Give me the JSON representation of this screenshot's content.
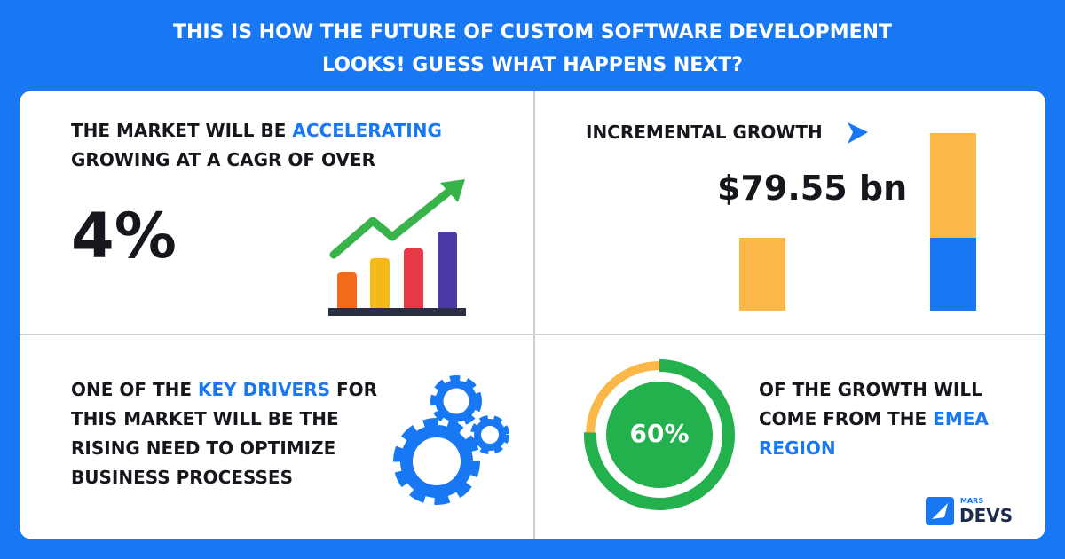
{
  "header": {
    "title_lines": [
      "THIS IS HOW THE FUTURE OF CUSTOM SOFTWARE DEVELOPMENT",
      "LOOKS! GUESS WHAT HAPPENS NEXT?"
    ]
  },
  "panels": {
    "market": {
      "before": "THE MARKET WILL BE",
      "highlight": "ACCELERATING",
      "second_line": "GROWING AT A CAGR OF OVER",
      "figure": "4%"
    },
    "growth": {
      "label": "INCREMENTAL GROWTH",
      "figure": "$79.55 bn"
    },
    "drivers": {
      "before": "ONE OF THE",
      "highlight": "KEY DRIVERS",
      "after": "FOR",
      "lines": [
        "THIS MARKET WILL BE THE",
        "RISING NEED TO OPTIMIZE",
        "BUSINESS PROCESSES"
      ]
    },
    "region": {
      "figure": "60%",
      "line1": "OF THE GROWTH WILL",
      "line2_before": "COME FROM THE",
      "line2_highlight": "EMEA",
      "line3_highlight": "REGION"
    }
  },
  "logo": {
    "small": "MARS",
    "name": "DEVS"
  }
}
